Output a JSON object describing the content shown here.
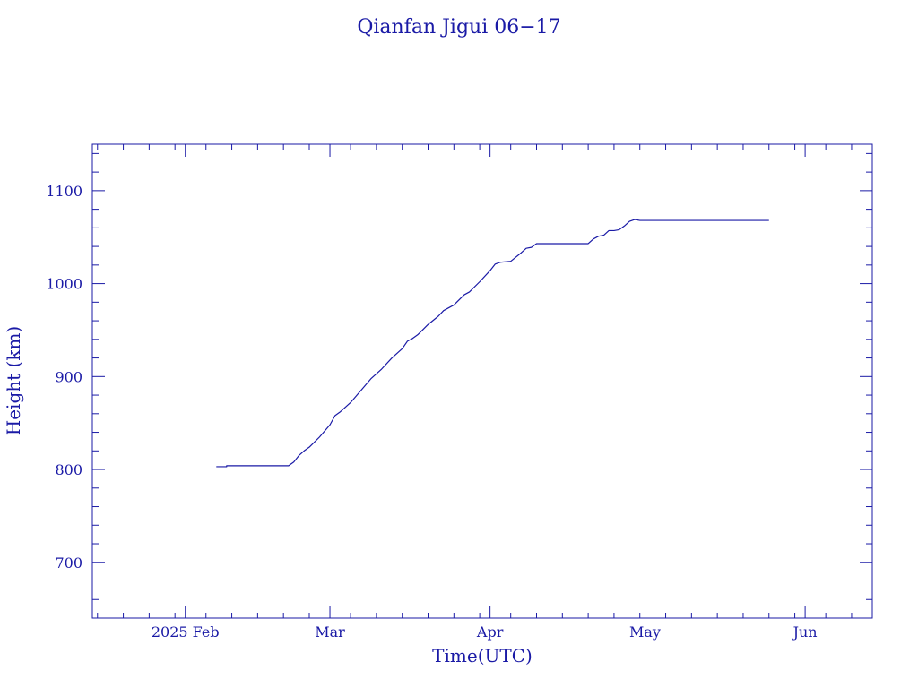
{
  "chart_data": {
    "type": "line",
    "title": "Qianfan Jigui 06−17",
    "xlabel": "Time(UTC)",
    "ylabel": "Height (km)",
    "xlim": [
      "2025-01-14",
      "2025-06-14"
    ],
    "ylim": [
      640,
      1150
    ],
    "x_ticks": [
      {
        "label": "2025 Feb",
        "date": "2025-02-01"
      },
      {
        "label": "Mar",
        "date": "2025-03-01"
      },
      {
        "label": "Apr",
        "date": "2025-04-01"
      },
      {
        "label": "May",
        "date": "2025-05-01"
      },
      {
        "label": "Jun",
        "date": "2025-06-01"
      }
    ],
    "y_ticks": [
      700,
      800,
      900,
      1000,
      1100
    ],
    "series": [
      {
        "color": "#1a1aa6",
        "points": [
          [
            "2025-02-07",
            803
          ],
          [
            "2025-02-09",
            803
          ],
          [
            "2025-02-09",
            804
          ],
          [
            "2025-02-14",
            804
          ],
          [
            "2025-02-21",
            804
          ],
          [
            "2025-02-22",
            808
          ],
          [
            "2025-02-23",
            815
          ],
          [
            "2025-02-24",
            820
          ],
          [
            "2025-02-25",
            824
          ],
          [
            "2025-02-27",
            835
          ],
          [
            "2025-03-01",
            848
          ],
          [
            "2025-03-02",
            858
          ],
          [
            "2025-03-03",
            862
          ],
          [
            "2025-03-05",
            872
          ],
          [
            "2025-03-07",
            885
          ],
          [
            "2025-03-09",
            898
          ],
          [
            "2025-03-11",
            908
          ],
          [
            "2025-03-13",
            920
          ],
          [
            "2025-03-15",
            930
          ],
          [
            "2025-03-16",
            938
          ],
          [
            "2025-03-17",
            941
          ],
          [
            "2025-03-18",
            945
          ],
          [
            "2025-03-20",
            956
          ],
          [
            "2025-03-22",
            965
          ],
          [
            "2025-03-23",
            971
          ],
          [
            "2025-03-25",
            977
          ],
          [
            "2025-03-27",
            988
          ],
          [
            "2025-03-28",
            991
          ],
          [
            "2025-03-30",
            1002
          ],
          [
            "2025-04-01",
            1014
          ],
          [
            "2025-04-02",
            1021
          ],
          [
            "2025-04-03",
            1023
          ],
          [
            "2025-04-05",
            1024
          ],
          [
            "2025-04-07",
            1033
          ],
          [
            "2025-04-08",
            1038
          ],
          [
            "2025-04-09",
            1039
          ],
          [
            "2025-04-10",
            1043
          ],
          [
            "2025-04-15",
            1043
          ],
          [
            "2025-04-20",
            1043
          ],
          [
            "2025-04-21",
            1048
          ],
          [
            "2025-04-22",
            1051
          ],
          [
            "2025-04-23",
            1052
          ],
          [
            "2025-04-24",
            1057
          ],
          [
            "2025-04-25",
            1057
          ],
          [
            "2025-04-26",
            1058
          ],
          [
            "2025-04-27",
            1062
          ],
          [
            "2025-04-28",
            1067
          ],
          [
            "2025-04-29",
            1069
          ],
          [
            "2025-04-30",
            1068
          ],
          [
            "2025-05-15",
            1068
          ],
          [
            "2025-05-25",
            1068
          ]
        ]
      }
    ]
  }
}
